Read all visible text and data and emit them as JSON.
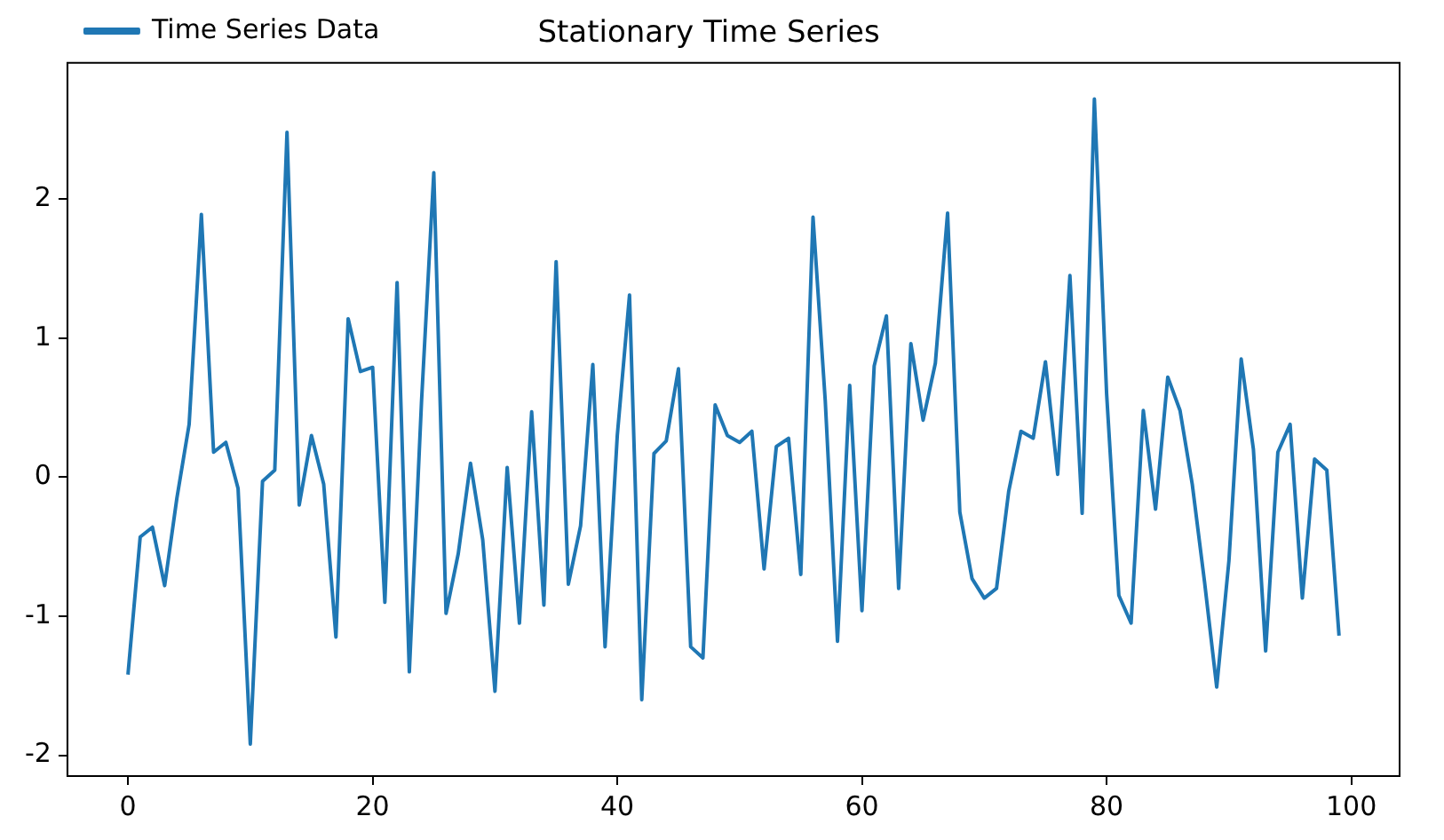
{
  "chart_data": {
    "type": "line",
    "title": "Stationary Time Series",
    "x": [
      0,
      1,
      2,
      3,
      4,
      5,
      6,
      7,
      8,
      9,
      10,
      11,
      12,
      13,
      14,
      15,
      16,
      17,
      18,
      19,
      20,
      21,
      22,
      23,
      24,
      25,
      26,
      27,
      28,
      29,
      30,
      31,
      32,
      33,
      34,
      35,
      36,
      37,
      38,
      39,
      40,
      41,
      42,
      43,
      44,
      45,
      46,
      47,
      48,
      49,
      50,
      51,
      52,
      53,
      54,
      55,
      56,
      57,
      58,
      59,
      60,
      61,
      62,
      63,
      64,
      65,
      66,
      67,
      68,
      69,
      70,
      71,
      72,
      73,
      74,
      75,
      76,
      77,
      78,
      79,
      80,
      81,
      82,
      83,
      84,
      85,
      86,
      87,
      88,
      89,
      90,
      91,
      92,
      93,
      94,
      95,
      96,
      97,
      98,
      99
    ],
    "series": [
      {
        "name": "Time Series Data",
        "color": "#1f77b4",
        "values": [
          -1.42,
          -0.43,
          -0.36,
          -0.78,
          -0.15,
          0.38,
          1.89,
          0.18,
          0.25,
          -0.08,
          -1.92,
          -0.03,
          0.05,
          2.48,
          -0.2,
          0.3,
          -0.05,
          -1.15,
          1.14,
          0.76,
          0.79,
          -0.9,
          1.4,
          -1.4,
          0.55,
          2.19,
          -0.98,
          -0.55,
          0.1,
          -0.45,
          -1.54,
          0.07,
          -1.05,
          0.47,
          -0.92,
          1.55,
          -0.77,
          -0.35,
          0.81,
          -1.22,
          0.3,
          1.31,
          -1.6,
          0.17,
          0.26,
          0.78,
          -1.22,
          -1.3,
          0.52,
          0.3,
          0.25,
          0.33,
          -0.66,
          0.22,
          0.28,
          -0.7,
          1.87,
          0.55,
          -1.18,
          0.66,
          -0.96,
          0.8,
          1.16,
          -0.8,
          0.96,
          0.41,
          0.82,
          1.9,
          -0.25,
          -0.73,
          -0.87,
          -0.8,
          -0.1,
          0.33,
          0.28,
          0.83,
          0.02,
          1.45,
          -0.26,
          2.72,
          0.6,
          -0.85,
          -1.05,
          0.48,
          -0.23,
          0.72,
          0.48,
          -0.05,
          -0.75,
          -1.51,
          -0.6,
          0.85,
          0.2,
          -1.25,
          0.18,
          0.38,
          -0.87,
          0.13,
          0.05,
          -1.14
        ]
      }
    ],
    "xlim": [
      -4.95,
      103.95
    ],
    "ylim": [
      -2.15,
      2.98
    ],
    "xticks": [
      0,
      20,
      40,
      60,
      80,
      100
    ],
    "yticks": [
      -2,
      -1,
      0,
      1,
      2
    ],
    "legend": "top left",
    "grid": false,
    "marker": "none",
    "line_style": "solid"
  }
}
